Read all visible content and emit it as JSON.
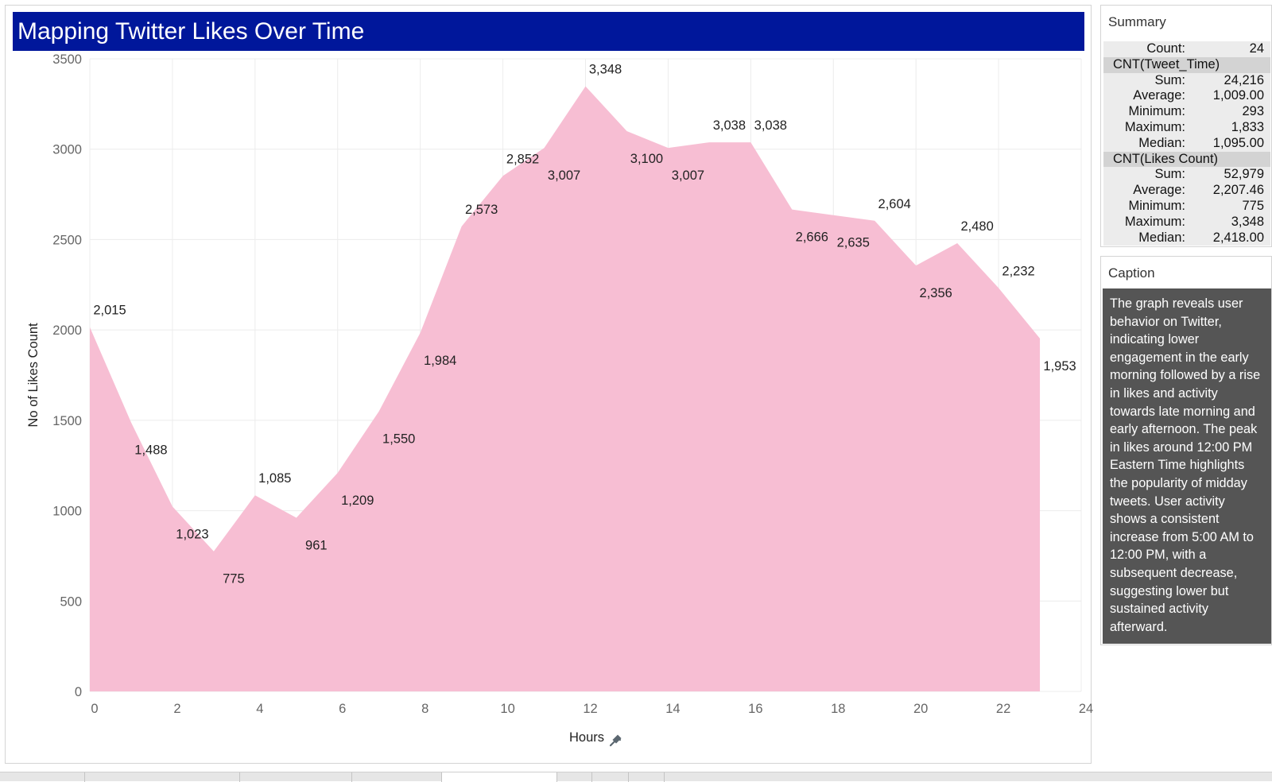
{
  "chart": {
    "title": "Mapping Twitter Likes Over Time"
  },
  "chart_data": {
    "type": "area",
    "title": "Mapping Twitter Likes Over Time",
    "xlabel": "Hours",
    "ylabel": "No of Likes Count",
    "xlim": [
      0,
      24
    ],
    "ylim": [
      0,
      3500
    ],
    "xticks": [
      0,
      2,
      4,
      6,
      8,
      10,
      12,
      14,
      16,
      18,
      20,
      22,
      24
    ],
    "yticks": [
      0,
      500,
      1000,
      1500,
      2000,
      2500,
      3000,
      3500
    ],
    "grid": true,
    "color": "#f7bed3",
    "x": [
      0,
      1,
      2,
      3,
      4,
      5,
      6,
      7,
      8,
      9,
      10,
      11,
      12,
      13,
      14,
      15,
      16,
      17,
      18,
      19,
      20,
      21,
      22,
      23
    ],
    "values": [
      2015,
      1488,
      1023,
      775,
      1085,
      961,
      1209,
      1550,
      1984,
      2573,
      2852,
      3007,
      3348,
      3100,
      3007,
      3038,
      3038,
      2666,
      2635,
      2604,
      2356,
      2480,
      2232,
      1953
    ],
    "data_labels": [
      "2,015",
      "1,488",
      "1,023",
      "775",
      "1,085",
      "961",
      "1,209",
      "1,550",
      "1,984",
      "2,573",
      "2,852",
      "3,007",
      "3,348",
      "3,100",
      "3,007",
      "3,038",
      "3,038",
      "2,666",
      "2,635",
      "2,604",
      "2,356",
      "2,480",
      "2,232",
      "1,953"
    ]
  },
  "summary": {
    "title": "Summary",
    "count_label": "Count:",
    "count_value": "24",
    "group1": {
      "name": "CNT(Tweet_Time)",
      "rows": [
        {
          "label": "Sum:",
          "value": "24,216"
        },
        {
          "label": "Average:",
          "value": "1,009.00"
        },
        {
          "label": "Minimum:",
          "value": "293"
        },
        {
          "label": "Maximum:",
          "value": "1,833"
        },
        {
          "label": "Median:",
          "value": "1,095.00"
        }
      ]
    },
    "group2": {
      "name": "CNT(Likes Count)",
      "rows": [
        {
          "label": "Sum:",
          "value": "52,979"
        },
        {
          "label": "Average:",
          "value": "2,207.46"
        },
        {
          "label": "Minimum:",
          "value": "775"
        },
        {
          "label": "Maximum:",
          "value": "3,348"
        },
        {
          "label": "Median:",
          "value": "2,418.00"
        }
      ]
    }
  },
  "caption": {
    "title": "Caption",
    "text": "The graph reveals user behavior on Twitter, indicating lower engagement in the early morning followed by a rise in likes and activity towards late morning and early afternoon. The peak in likes around 12:00 PM Eastern Time highlights the popularity of midday tweets. User activity shows a consistent increase from 5:00 AM to 12:00 PM, with a subsequent decrease, suggesting lower but sustained activity afterward."
  },
  "icons": {
    "xlabel_pin": "pin-icon"
  }
}
